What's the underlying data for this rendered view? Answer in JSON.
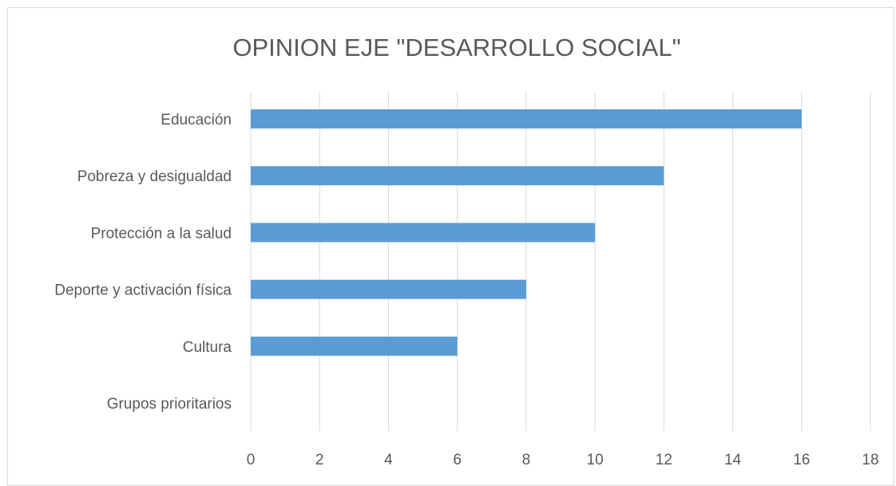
{
  "chart_data": {
    "type": "bar",
    "orientation": "horizontal",
    "title": "OPINION EJE \"DESARROLLO SOCIAL\"",
    "xlabel": "",
    "ylabel": "",
    "categories": [
      "Educación",
      "Pobreza y desigualdad",
      "Protección a la salud",
      "Deporte y activación física",
      "Cultura",
      "Grupos prioritarios"
    ],
    "values": [
      16,
      12,
      10,
      8,
      6,
      0
    ],
    "xlim": [
      0,
      18
    ],
    "ticks": [
      "0",
      "2",
      "4",
      "6",
      "8",
      "10",
      "12",
      "14",
      "16",
      "18"
    ],
    "grid": true,
    "legend": "none",
    "bar_color": "#5b9bd5"
  }
}
